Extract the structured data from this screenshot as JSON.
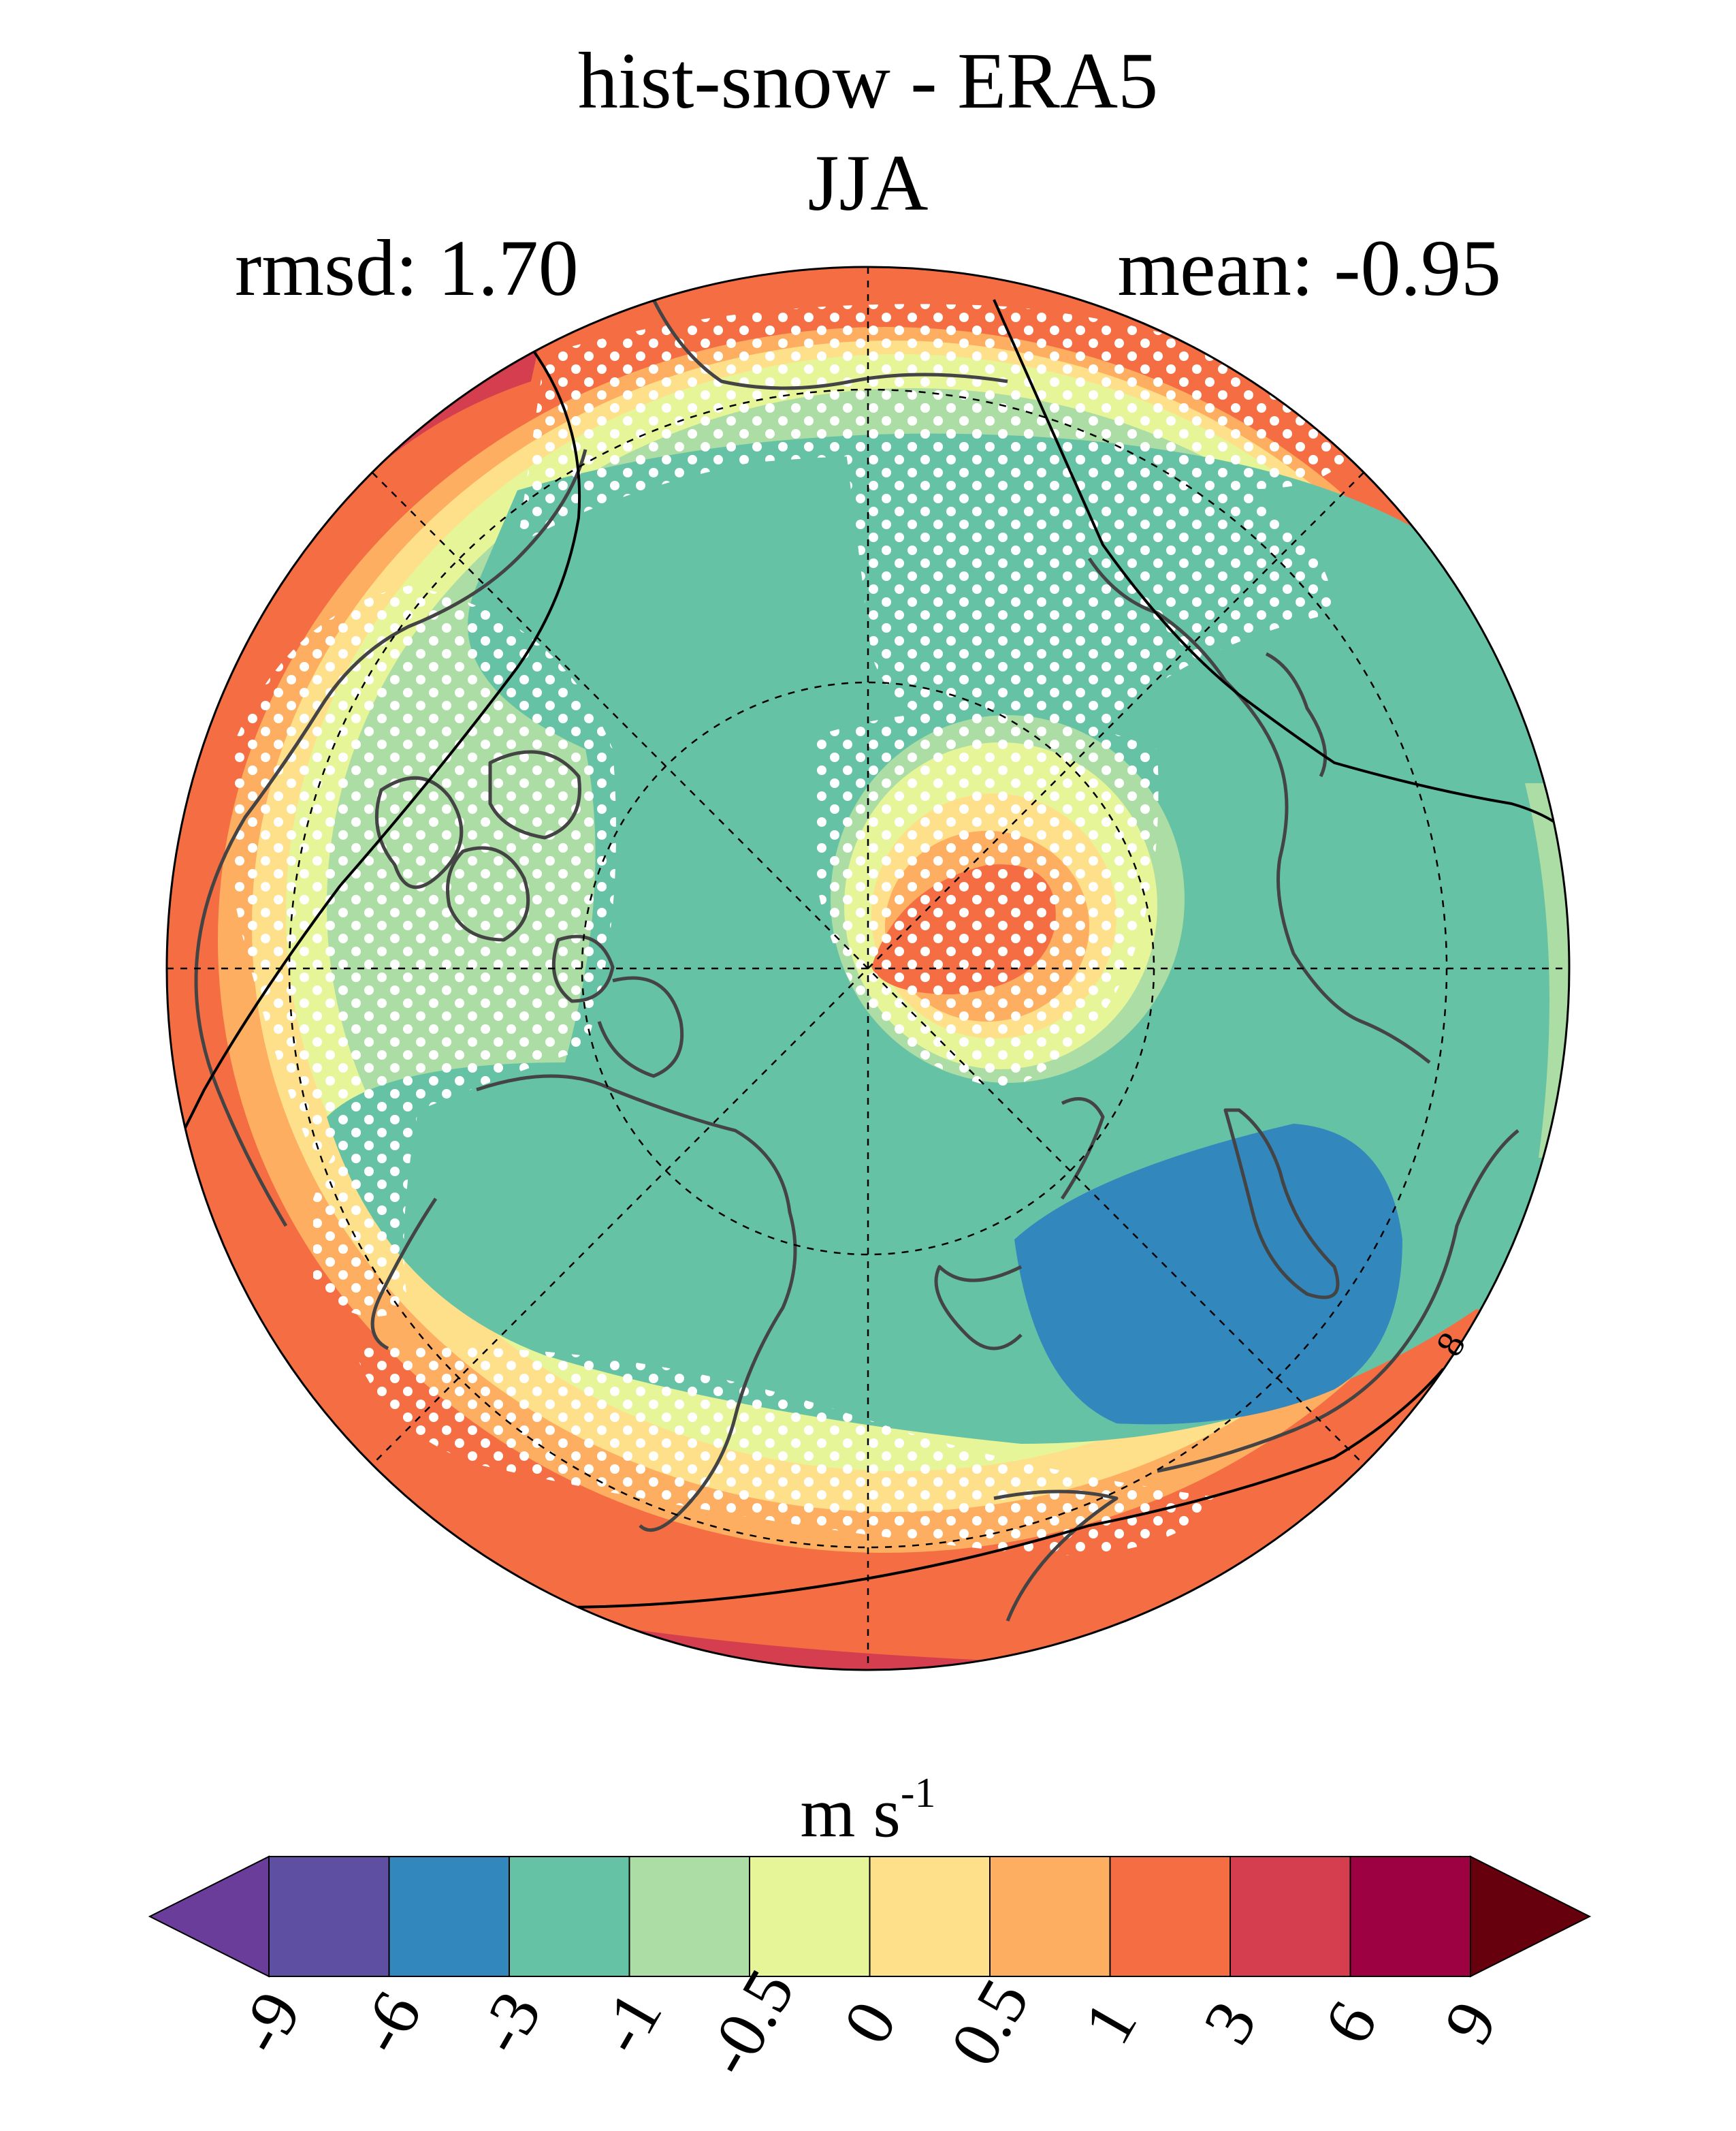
{
  "title": "hist-snow - ERA5",
  "season": "JJA",
  "rmsd_label": "rmsd: 1.70",
  "mean_label": "mean: -0.95",
  "contour_label": "8",
  "units": {
    "base": "m s",
    "exponent": "-1"
  },
  "colorbar": {
    "ticks": [
      "-9",
      "-6",
      "-3",
      "-1",
      "-0.5",
      "0",
      "0.5",
      "1",
      "3",
      "6",
      "9"
    ],
    "colors": [
      "#5e4fa2",
      "#3288bd",
      "#66c2a5",
      "#abdda4",
      "#e6f598",
      "#fee08b",
      "#fdae61",
      "#f46d43",
      "#d53e4f",
      "#9e0142"
    ],
    "under_color": "#6a3d9a",
    "over_color": "#67000d"
  },
  "palette": {
    "minus_1_to_minus_3": "#66c2a5",
    "minus_3_to_minus_6": "#3288bd",
    "minus_0_5_to_minus_1": "#abdda4",
    "minus_0_5_to_0": "#e6f598",
    "0_to_0_5": "#fee08b",
    "0_5_to_1": "#fdae61",
    "1_to_3": "#f46d43",
    "3_to_6": "#d53e4f"
  }
}
